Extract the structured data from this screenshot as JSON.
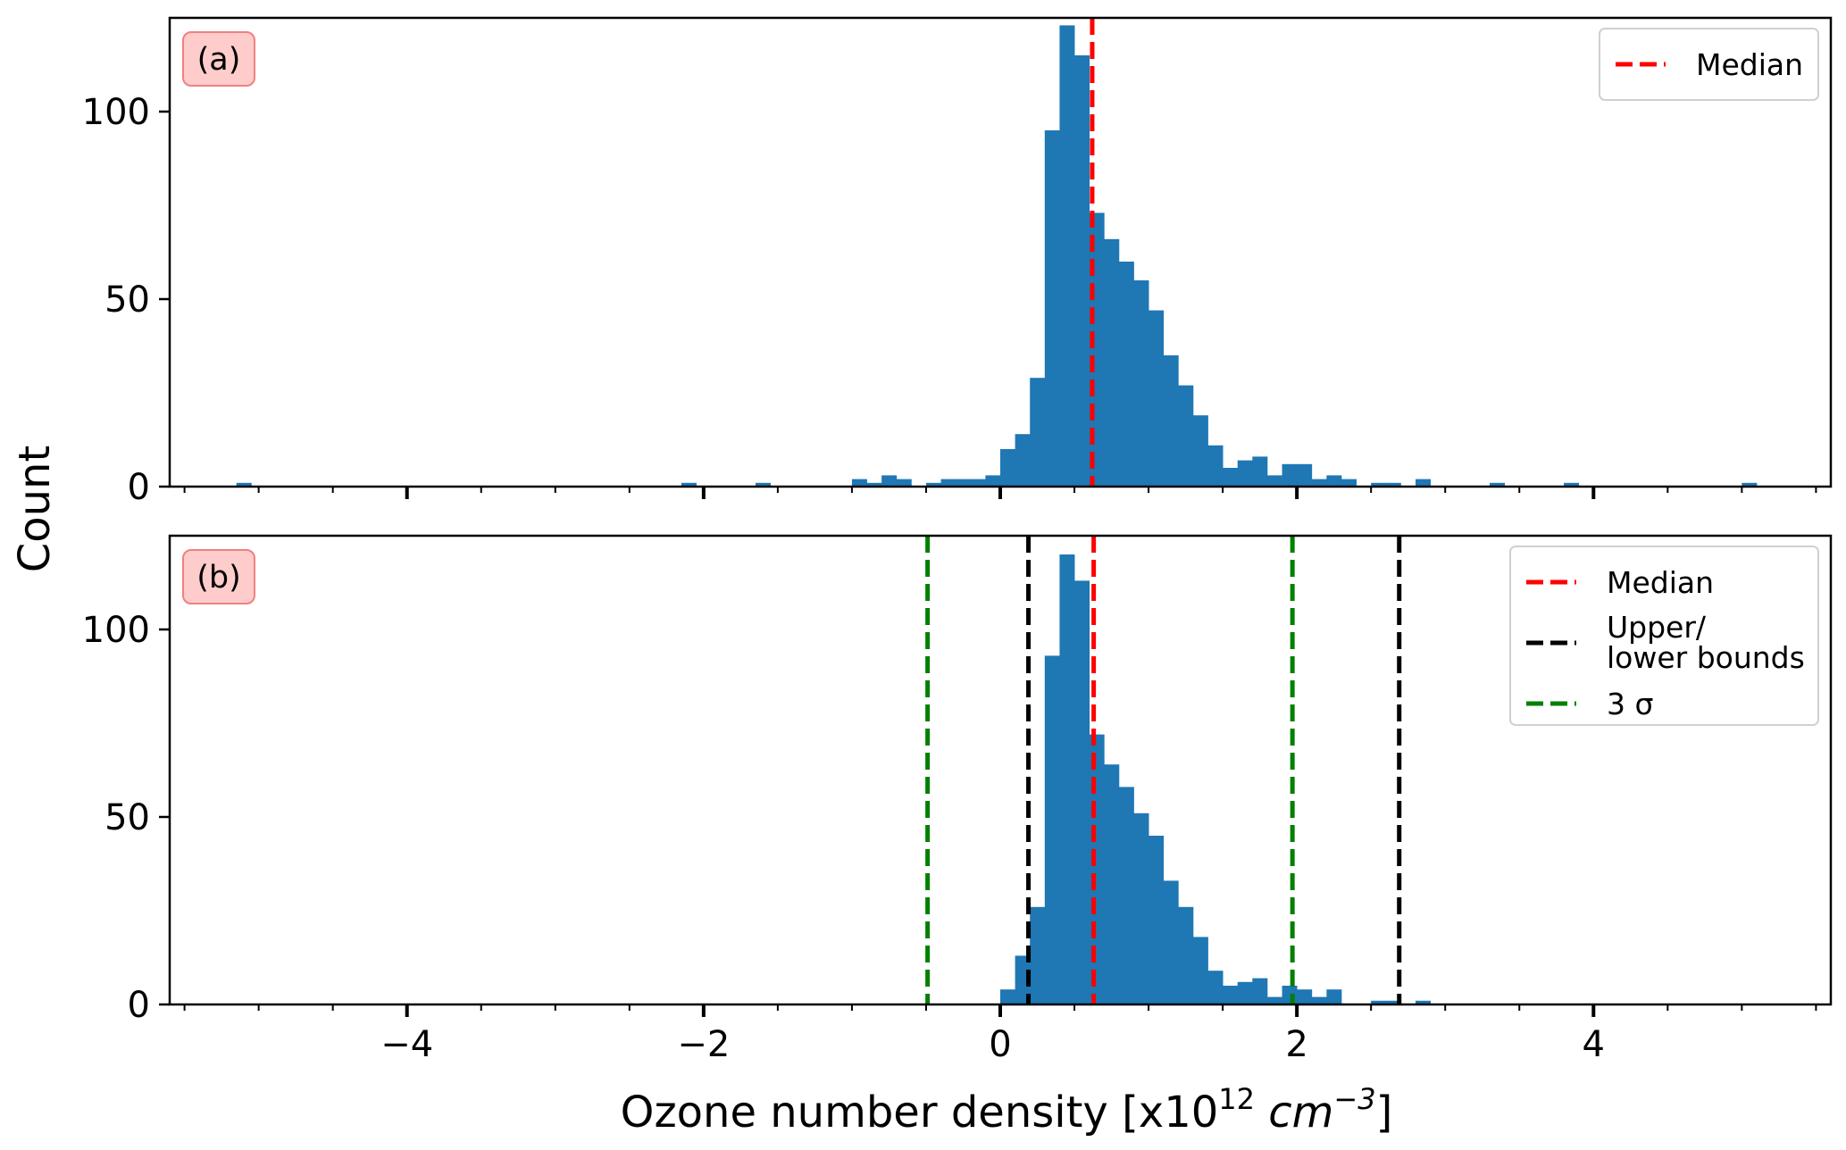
{
  "chart_data": {
    "type": "bar",
    "xlabel": "Ozone number density [x10",
    "xlabel_exponent": "12",
    "xlabel_unit": " cm",
    "xlabel_unit_exponent": "−3",
    "xlabel_close": "]",
    "ylabel": "Count",
    "xlim": [
      -5.6,
      5.6
    ],
    "ylim": [
      0,
      125
    ],
    "bin_width": 0.1,
    "x_major_ticks": [
      -4,
      -2,
      0,
      2,
      4
    ],
    "x_tick_labels": [
      "−4",
      "−2",
      "0",
      "2",
      "4"
    ],
    "x_minor_step": 0.5,
    "y_ticks": [
      0,
      50,
      100
    ],
    "y_tick_labels": [
      "0",
      "50",
      "100"
    ],
    "colors": {
      "bars": "#1f77b4",
      "median": "#ff0000",
      "bounds": "#000000",
      "sigma": "#008000",
      "tag_fill": "#ffcccc",
      "tag_edge": "#f08080"
    },
    "panels": [
      {
        "tag": "(a)",
        "bins": [
          {
            "x": -5.1,
            "y": 1
          },
          {
            "x": -2.1,
            "y": 1
          },
          {
            "x": -1.6,
            "y": 1
          },
          {
            "x": -0.95,
            "y": 2
          },
          {
            "x": -0.85,
            "y": 1
          },
          {
            "x": -0.75,
            "y": 3
          },
          {
            "x": -0.65,
            "y": 2
          },
          {
            "x": -0.45,
            "y": 1
          },
          {
            "x": -0.35,
            "y": 2
          },
          {
            "x": -0.25,
            "y": 2
          },
          {
            "x": -0.15,
            "y": 2
          },
          {
            "x": -0.05,
            "y": 3
          },
          {
            "x": 0.05,
            "y": 10
          },
          {
            "x": 0.15,
            "y": 14
          },
          {
            "x": 0.25,
            "y": 29
          },
          {
            "x": 0.35,
            "y": 95
          },
          {
            "x": 0.45,
            "y": 123
          },
          {
            "x": 0.55,
            "y": 115
          },
          {
            "x": 0.65,
            "y": 73
          },
          {
            "x": 0.75,
            "y": 66
          },
          {
            "x": 0.85,
            "y": 60
          },
          {
            "x": 0.95,
            "y": 55
          },
          {
            "x": 1.05,
            "y": 47
          },
          {
            "x": 1.15,
            "y": 35
          },
          {
            "x": 1.25,
            "y": 27
          },
          {
            "x": 1.35,
            "y": 19
          },
          {
            "x": 1.45,
            "y": 11
          },
          {
            "x": 1.55,
            "y": 5
          },
          {
            "x": 1.65,
            "y": 7
          },
          {
            "x": 1.75,
            "y": 8
          },
          {
            "x": 1.85,
            "y": 3
          },
          {
            "x": 1.95,
            "y": 6
          },
          {
            "x": 2.05,
            "y": 6
          },
          {
            "x": 2.15,
            "y": 2
          },
          {
            "x": 2.25,
            "y": 3
          },
          {
            "x": 2.35,
            "y": 2
          },
          {
            "x": 2.55,
            "y": 1
          },
          {
            "x": 2.65,
            "y": 1
          },
          {
            "x": 2.85,
            "y": 2
          },
          {
            "x": 3.35,
            "y": 1
          },
          {
            "x": 3.85,
            "y": 1
          },
          {
            "x": 5.05,
            "y": 1
          }
        ],
        "lines": [
          {
            "x": 0.62,
            "role": "median"
          }
        ],
        "legend": [
          {
            "role": "median",
            "label": "Median"
          }
        ]
      },
      {
        "tag": "(b)",
        "bins": [
          {
            "x": 0.05,
            "y": 4
          },
          {
            "x": 0.15,
            "y": 13
          },
          {
            "x": 0.25,
            "y": 26
          },
          {
            "x": 0.35,
            "y": 93
          },
          {
            "x": 0.45,
            "y": 120
          },
          {
            "x": 0.55,
            "y": 113
          },
          {
            "x": 0.65,
            "y": 72
          },
          {
            "x": 0.75,
            "y": 64
          },
          {
            "x": 0.85,
            "y": 58
          },
          {
            "x": 0.95,
            "y": 51
          },
          {
            "x": 1.05,
            "y": 45
          },
          {
            "x": 1.15,
            "y": 33
          },
          {
            "x": 1.25,
            "y": 26
          },
          {
            "x": 1.35,
            "y": 18
          },
          {
            "x": 1.45,
            "y": 9
          },
          {
            "x": 1.55,
            "y": 5
          },
          {
            "x": 1.65,
            "y": 6
          },
          {
            "x": 1.75,
            "y": 7
          },
          {
            "x": 1.85,
            "y": 2
          },
          {
            "x": 1.95,
            "y": 5
          },
          {
            "x": 2.05,
            "y": 4
          },
          {
            "x": 2.15,
            "y": 2
          },
          {
            "x": 2.25,
            "y": 4
          },
          {
            "x": 2.55,
            "y": 1
          },
          {
            "x": 2.65,
            "y": 1
          },
          {
            "x": 2.85,
            "y": 1
          }
        ],
        "lines": [
          {
            "x": -0.49,
            "role": "sigma"
          },
          {
            "x": 0.19,
            "role": "bounds"
          },
          {
            "x": 0.63,
            "role": "median"
          },
          {
            "x": 1.97,
            "role": "sigma"
          },
          {
            "x": 2.69,
            "role": "bounds"
          }
        ],
        "legend": [
          {
            "role": "median",
            "label": "Median"
          },
          {
            "role": "bounds",
            "label": "Upper/",
            "label2": "lower bounds"
          },
          {
            "role": "sigma",
            "label": "3 σ"
          }
        ]
      }
    ]
  }
}
